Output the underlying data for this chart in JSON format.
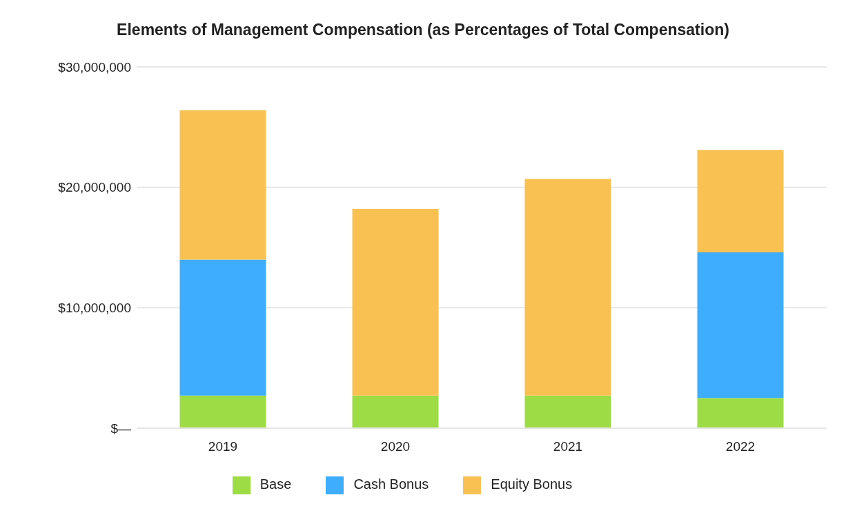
{
  "chart_data": {
    "type": "bar",
    "title": "Elements of Management Compensation (as Percentages of Total Compensation)",
    "categories": [
      "2019",
      "2020",
      "2021",
      "2022"
    ],
    "stacked": true,
    "ylim": [
      0,
      30000000
    ],
    "yticks": [
      {
        "value": 0,
        "label": "$—"
      },
      {
        "value": 10000000,
        "label": "$10,000,000"
      },
      {
        "value": 20000000,
        "label": "$20,000,000"
      },
      {
        "value": 30000000,
        "label": "$30,000,000"
      }
    ],
    "grid": "y",
    "legend": "bottom",
    "series": [
      {
        "name": "Base",
        "color": "#9ddc44",
        "values": [
          2700000,
          2700000,
          2700000,
          2500000
        ]
      },
      {
        "name": "Cash Bonus",
        "color": "#3fadfd",
        "values": [
          11300000,
          0,
          0,
          12100000
        ]
      },
      {
        "name": "Equity Bonus",
        "color": "#f9c152",
        "values": [
          12400000,
          15500000,
          18000000,
          8500000
        ]
      }
    ]
  }
}
